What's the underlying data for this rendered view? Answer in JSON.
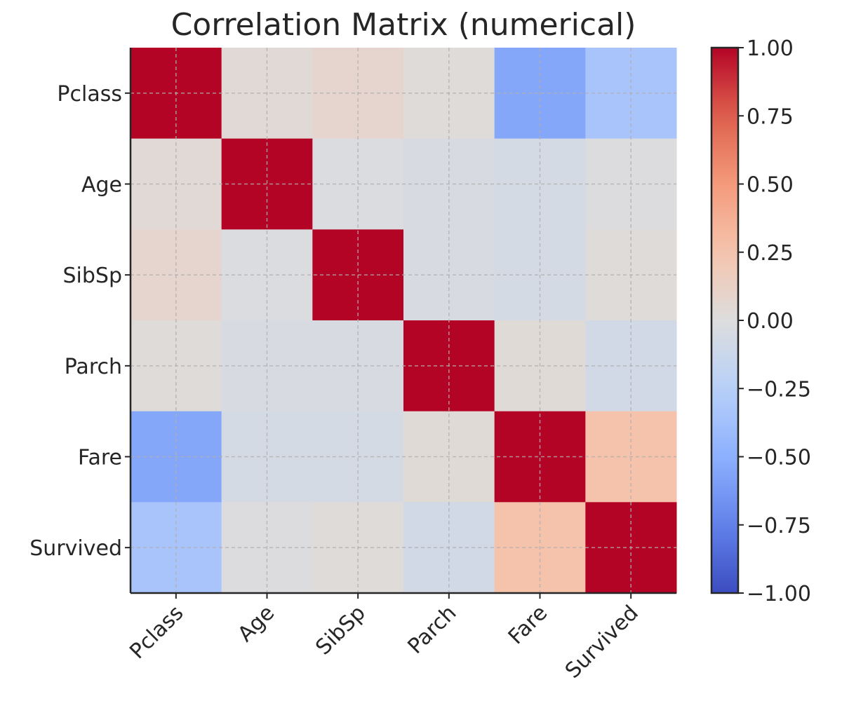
{
  "chart_data": {
    "type": "heatmap",
    "title": "Correlation Matrix (numerical)",
    "xlabel": "",
    "ylabel": "",
    "row_labels": [
      "Pclass",
      "Age",
      "SibSp",
      "Parch",
      "Fare",
      "Survived"
    ],
    "col_labels": [
      "Pclass",
      "Age",
      "SibSp",
      "Parch",
      "Fare",
      "Survived"
    ],
    "values": [
      [
        1.0,
        0.04,
        0.08,
        0.02,
        -0.55,
        -0.34
      ],
      [
        0.04,
        1.0,
        -0.02,
        -0.04,
        -0.06,
        -0.01
      ],
      [
        0.08,
        -0.02,
        1.0,
        -0.04,
        -0.06,
        0.02
      ],
      [
        0.02,
        -0.04,
        -0.04,
        1.0,
        0.03,
        -0.08
      ],
      [
        -0.55,
        -0.06,
        -0.06,
        0.03,
        1.0,
        0.26
      ],
      [
        -0.34,
        -0.01,
        0.02,
        -0.08,
        0.26,
        1.0
      ]
    ],
    "colorscale": "coolwarm",
    "vmin": -1.0,
    "vmax": 1.0,
    "colorbar": {
      "ticks": [
        1.0,
        0.75,
        0.5,
        0.25,
        0.0,
        -0.25,
        -0.5,
        -0.75,
        -1.0
      ],
      "tick_labels": [
        "1.00",
        "0.75",
        "0.50",
        "0.25",
        "0.00",
        "−0.25",
        "−0.50",
        "−0.75",
        "−1.00"
      ]
    },
    "grid": true,
    "x_tick_rotation_deg": 45
  }
}
